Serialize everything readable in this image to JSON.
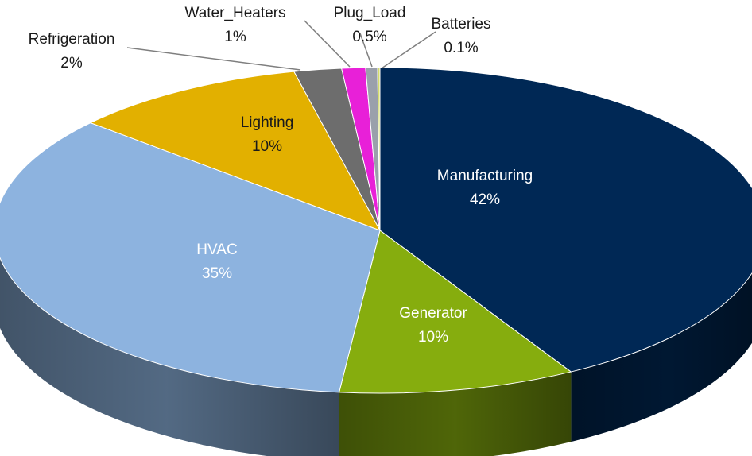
{
  "chart_data": {
    "type": "pie",
    "style": "3d",
    "categories": [
      "Manufacturing",
      "Generator",
      "HVAC",
      "Lighting",
      "Refrigeration",
      "Water_Heaters",
      "Plug_Load",
      "Batteries"
    ],
    "values": [
      42,
      10,
      35,
      10,
      2,
      1,
      0.5,
      0.1
    ],
    "value_labels": [
      "42%",
      "10%",
      "35%",
      "10%",
      "2%",
      "1%",
      "0.5%",
      "0.1%"
    ],
    "colors": [
      "#002855",
      "#86ad0e",
      "#8db3df",
      "#e2b000",
      "#6d6d6d",
      "#e820d8",
      "#9aa0ab",
      "#d4dc6e"
    ],
    "label_placement": [
      "inside",
      "inside",
      "inside",
      "inside",
      "outside",
      "outside",
      "outside",
      "outside"
    ],
    "title": "",
    "legend": "none"
  }
}
